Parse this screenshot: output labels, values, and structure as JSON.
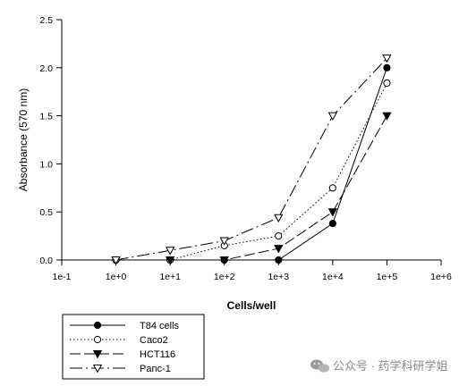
{
  "chart_data": {
    "type": "line",
    "xlabel": "Cells/well",
    "ylabel": "Absorbance (570 nm)",
    "x_scale": "log",
    "x_ticks": [
      "1e-1",
      "1e+0",
      "1e+1",
      "1e+2",
      "1e+3",
      "1e+4",
      "1e+5",
      "1e+6"
    ],
    "xlim": [
      0.1,
      1000000
    ],
    "y_ticks": [
      "0.0",
      "0.5",
      "1.0",
      "1.5",
      "2.0",
      "2.5"
    ],
    "ylim": [
      0,
      2.5
    ],
    "grid": false,
    "legend_position": "bottom-left, below the plot",
    "series": [
      {
        "name": "T84 cells",
        "marker": "filled-circle",
        "line_style": "solid",
        "x": [
          1,
          10,
          100,
          1000,
          10000,
          100000
        ],
        "y": [
          0.0,
          0.0,
          0.0,
          0.0,
          0.38,
          2.0
        ]
      },
      {
        "name": "Caco2",
        "marker": "open-circle",
        "line_style": "dotted",
        "x": [
          1,
          10,
          100,
          1000,
          10000,
          100000
        ],
        "y": [
          0.0,
          0.0,
          0.15,
          0.25,
          0.75,
          1.84
        ]
      },
      {
        "name": "HCT116",
        "marker": "filled-triangle-down",
        "line_style": "dashed",
        "x": [
          1,
          10,
          100,
          1000,
          10000,
          100000
        ],
        "y": [
          0.0,
          0.0,
          0.0,
          0.12,
          0.5,
          1.5
        ]
      },
      {
        "name": "Panc-1",
        "marker": "open-triangle-down",
        "line_style": "dash-dot",
        "x": [
          1,
          10,
          100,
          1000,
          10000,
          100000
        ],
        "y": [
          0.0,
          0.1,
          0.2,
          0.44,
          1.5,
          2.1
        ]
      }
    ]
  },
  "watermark": {
    "text": "公众号 · 药学科研学姐",
    "icon": "wechat-icon"
  },
  "colors": {
    "line": "#000000",
    "watermark": "#8a8a8a"
  }
}
